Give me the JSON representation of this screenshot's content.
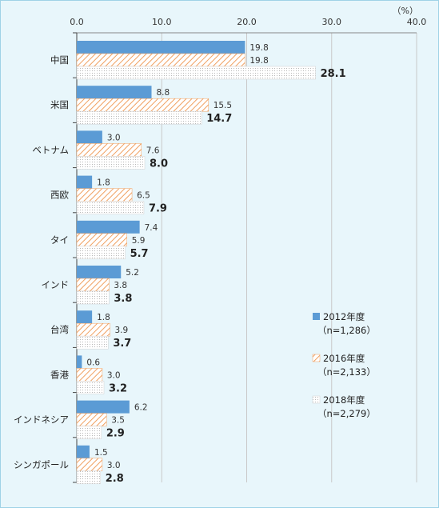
{
  "chart_data": {
    "type": "bar",
    "orientation": "horizontal",
    "unit": "（%）",
    "xlim": [
      0,
      40
    ],
    "ticks": [
      "0.0",
      "10.0",
      "20.0",
      "30.0",
      "40.0"
    ],
    "categories": [
      "中国",
      "米国",
      "ベトナム",
      "西欧",
      "タイ",
      "インド",
      "台湾",
      "香港",
      "インドネシア",
      "シンガポール"
    ],
    "series": [
      {
        "name": "2012年度",
        "sample": "（n=1,286）",
        "color": "#5b9bd5",
        "pattern": "solid",
        "values": [
          19.8,
          8.8,
          3.0,
          1.8,
          7.4,
          5.2,
          1.8,
          0.6,
          6.2,
          1.5
        ],
        "labels": [
          "19.8",
          "8.8",
          "3.0",
          "1.8",
          "7.4",
          "5.2",
          "1.8",
          "0.6",
          "6.2",
          "1.5"
        ]
      },
      {
        "name": "2016年度",
        "sample": "（n=2,133）",
        "color": "#f0a060",
        "pattern": "diagonal-hatch",
        "values": [
          19.8,
          15.5,
          7.6,
          6.5,
          5.9,
          3.8,
          3.9,
          3.0,
          3.5,
          3.0
        ],
        "labels": [
          "19.8",
          "15.5",
          "7.6",
          "6.5",
          "5.9",
          "3.8",
          "3.9",
          "3.0",
          "3.5",
          "3.0"
        ]
      },
      {
        "name": "2018年度",
        "sample": "（n=2,279）",
        "color": "#c8c8c8",
        "pattern": "dots",
        "values": [
          28.1,
          14.7,
          8.0,
          7.9,
          5.7,
          3.8,
          3.7,
          3.2,
          2.9,
          2.8
        ],
        "labels": [
          "28.1",
          "14.7",
          "8.0",
          "7.9",
          "5.7",
          "3.8",
          "3.7",
          "3.2",
          "2.9",
          "2.8"
        ]
      }
    ],
    "legend_position": "right",
    "grid": true
  }
}
